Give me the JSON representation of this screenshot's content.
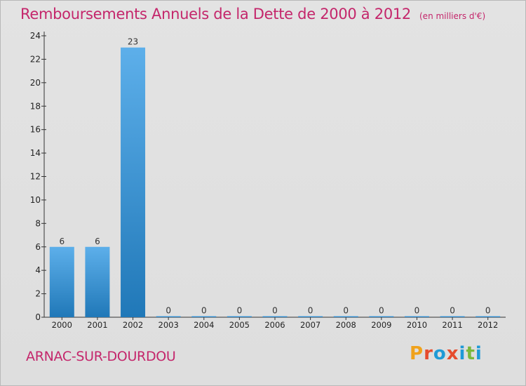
{
  "header": {
    "title": "Remboursements Annuels de la Dette de 2000 à 2012",
    "unit": "(en milliers d'€)"
  },
  "footer": {
    "commune": "ARNAC-SUR-DOURDOU",
    "logo_text": "Proxiti",
    "logo_colors": [
      "#f0a21b",
      "#e64b2d",
      "#1f9ad6",
      "#e64b2d",
      "#1f9ad6",
      "#7ab83b",
      "#1f9ad6"
    ]
  },
  "colors": {
    "title": "#c4266b",
    "bar_light": "#5dafea",
    "bar_dark": "#2078b8",
    "axis": "#333333"
  },
  "chart_data": {
    "type": "bar",
    "categories": [
      "2000",
      "2001",
      "2002",
      "2003",
      "2004",
      "2005",
      "2006",
      "2007",
      "2008",
      "2009",
      "2010",
      "2011",
      "2012"
    ],
    "values": [
      6,
      6,
      23,
      0,
      0,
      0,
      0,
      0,
      0,
      0,
      0,
      0,
      0
    ],
    "data_labels": [
      "6",
      "6",
      "23",
      "0",
      "0",
      "0",
      "0",
      "0",
      "0",
      "0",
      "0",
      "0",
      "0"
    ],
    "ylim": [
      0,
      24
    ],
    "yticks": [
      0,
      2,
      4,
      6,
      8,
      10,
      12,
      14,
      16,
      18,
      20,
      22,
      24
    ],
    "grid": false,
    "legend": "none"
  }
}
